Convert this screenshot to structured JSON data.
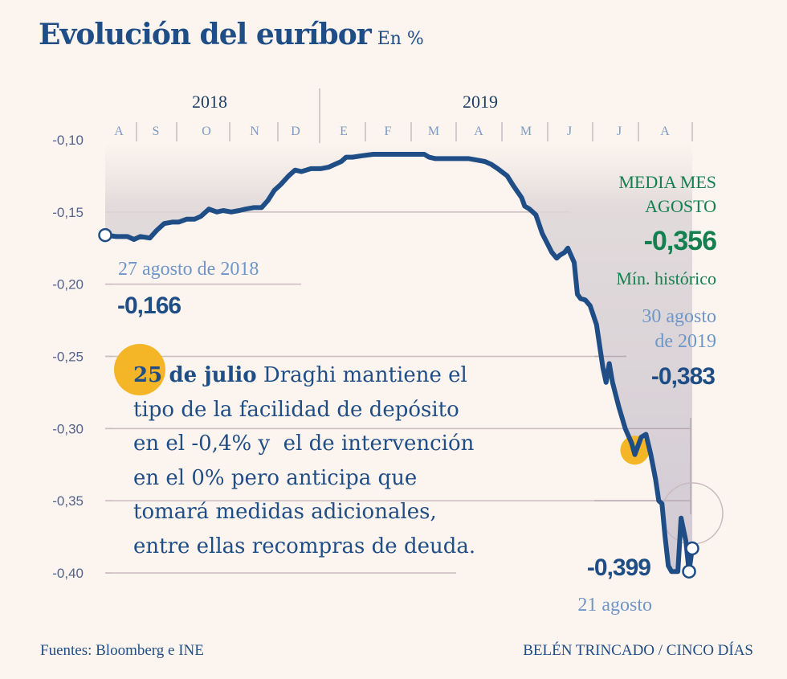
{
  "chart_data": {
    "type": "line",
    "title": "Evolución del euríbor",
    "unit": "En %",
    "xlabel": "",
    "ylabel": "",
    "ylim": [
      -0.4,
      -0.1
    ],
    "y_ticks": [
      -0.1,
      -0.15,
      -0.2,
      -0.25,
      -0.3,
      -0.35,
      -0.4
    ],
    "y_tick_labels": [
      "-0,10",
      "-0,15",
      "-0,20",
      "-0,25",
      "-0,30",
      "-0,35",
      "-0,40"
    ],
    "x_range": [
      "2018-08-27",
      "2019-08-30"
    ],
    "years": [
      {
        "label": "2018",
        "from": "2018-08-27",
        "to": "2018-12-31"
      },
      {
        "label": "2019",
        "from": "2019-01-01",
        "to": "2019-08-30"
      }
    ],
    "months": [
      "A",
      "S",
      "O",
      "N",
      "D",
      "E",
      "F",
      "M",
      "A",
      "M",
      "J",
      "J",
      "A"
    ],
    "grid": true,
    "series": [
      {
        "name": "Euríbor",
        "color": "#1f4d86",
        "points": [
          [
            "2018-08-27",
            -0.166
          ],
          [
            "2018-09-03",
            -0.167
          ],
          [
            "2018-09-10",
            -0.167
          ],
          [
            "2018-09-14",
            -0.169
          ],
          [
            "2018-09-18",
            -0.167
          ],
          [
            "2018-09-24",
            -0.168
          ],
          [
            "2018-09-28",
            -0.163
          ],
          [
            "2018-10-03",
            -0.158
          ],
          [
            "2018-10-08",
            -0.157
          ],
          [
            "2018-10-12",
            -0.157
          ],
          [
            "2018-10-17",
            -0.155
          ],
          [
            "2018-10-22",
            -0.155
          ],
          [
            "2018-10-26",
            -0.153
          ],
          [
            "2018-10-31",
            -0.148
          ],
          [
            "2018-11-05",
            -0.15
          ],
          [
            "2018-11-09",
            -0.149
          ],
          [
            "2018-11-14",
            -0.15
          ],
          [
            "2018-11-19",
            -0.149
          ],
          [
            "2018-11-23",
            -0.148
          ],
          [
            "2018-11-28",
            -0.147
          ],
          [
            "2018-12-03",
            -0.147
          ],
          [
            "2018-12-07",
            -0.142
          ],
          [
            "2018-12-11",
            -0.135
          ],
          [
            "2018-12-15",
            -0.131
          ],
          [
            "2018-12-20",
            -0.125
          ],
          [
            "2018-12-24",
            -0.121
          ],
          [
            "2018-12-28",
            -0.122
          ],
          [
            "2019-01-03",
            -0.12
          ],
          [
            "2019-01-09",
            -0.12
          ],
          [
            "2019-01-14",
            -0.119
          ],
          [
            "2019-01-18",
            -0.117
          ],
          [
            "2019-01-22",
            -0.115
          ],
          [
            "2019-01-25",
            -0.112
          ],
          [
            "2019-01-29",
            -0.112
          ],
          [
            "2019-02-04",
            -0.111
          ],
          [
            "2019-02-11",
            -0.11
          ],
          [
            "2019-02-20",
            -0.11
          ],
          [
            "2019-02-28",
            -0.11
          ],
          [
            "2019-03-08",
            -0.11
          ],
          [
            "2019-03-15",
            -0.11
          ],
          [
            "2019-03-18",
            -0.112
          ],
          [
            "2019-03-22",
            -0.113
          ],
          [
            "2019-03-29",
            -0.113
          ],
          [
            "2019-04-05",
            -0.113
          ],
          [
            "2019-04-12",
            -0.113
          ],
          [
            "2019-04-17",
            -0.114
          ],
          [
            "2019-04-22",
            -0.115
          ],
          [
            "2019-04-26",
            -0.117
          ],
          [
            "2019-04-30",
            -0.12
          ],
          [
            "2019-05-06",
            -0.125
          ],
          [
            "2019-05-10",
            -0.132
          ],
          [
            "2019-05-15",
            -0.14
          ],
          [
            "2019-05-17",
            -0.146
          ],
          [
            "2019-05-20",
            -0.148
          ],
          [
            "2019-05-24",
            -0.152
          ],
          [
            "2019-05-28",
            -0.165
          ],
          [
            "2019-06-03",
            -0.178
          ],
          [
            "2019-06-06",
            -0.182
          ],
          [
            "2019-06-08",
            -0.18
          ],
          [
            "2019-06-11",
            -0.178
          ],
          [
            "2019-06-13",
            -0.175
          ],
          [
            "2019-06-17",
            -0.185
          ],
          [
            "2019-06-19",
            -0.207
          ],
          [
            "2019-06-21",
            -0.21
          ],
          [
            "2019-06-24",
            -0.211
          ],
          [
            "2019-06-27",
            -0.215
          ],
          [
            "2019-07-01",
            -0.228
          ],
          [
            "2019-07-05",
            -0.258
          ],
          [
            "2019-07-07",
            -0.268
          ],
          [
            "2019-07-09",
            -0.255
          ],
          [
            "2019-07-11",
            -0.268
          ],
          [
            "2019-07-15",
            -0.285
          ],
          [
            "2019-07-19",
            -0.3
          ],
          [
            "2019-07-23",
            -0.31
          ],
          [
            "2019-07-25",
            -0.318
          ],
          [
            "2019-07-29",
            -0.306
          ],
          [
            "2019-08-01",
            -0.304
          ],
          [
            "2019-08-04",
            -0.318
          ],
          [
            "2019-08-07",
            -0.335
          ],
          [
            "2019-08-09",
            -0.35
          ],
          [
            "2019-08-11",
            -0.352
          ],
          [
            "2019-08-13",
            -0.375
          ],
          [
            "2019-08-15",
            -0.395
          ],
          [
            "2019-08-17",
            -0.399
          ],
          [
            "2019-08-21",
            -0.399
          ],
          [
            "2019-08-23",
            -0.362
          ],
          [
            "2019-08-26",
            -0.378
          ],
          [
            "2019-08-28",
            -0.399
          ],
          [
            "2019-08-30",
            -0.383
          ]
        ]
      }
    ],
    "annotations": [
      {
        "date": "2018-08-27",
        "label": "27 agosto de 2018",
        "value_label": "-0,166"
      },
      {
        "date": "2019-08-30",
        "label_lines": [
          "30 agosto",
          "de 2019"
        ],
        "value_label": "-0,383"
      },
      {
        "date": "2019-08-28",
        "label": "21 agosto",
        "value_label": "-0,399"
      },
      {
        "date": "2019-07-25",
        "marker": "event",
        "color": "#f4b626"
      }
    ],
    "media_mes": {
      "label_lines": [
        "MEDIA MES",
        "AGOSTO"
      ],
      "value": "-0,356",
      "note": "Mín. histórico",
      "color": "#14804f"
    }
  },
  "header": {
    "title": "Evolución del euríbor",
    "unit": "En %"
  },
  "event_note": {
    "badge_day": "25",
    "bold": "de julio",
    "text_lines": [
      " Draghi mantiene el",
      "tipo de la facilidad de depósito",
      "en el -0,4% y  el de intervención",
      "en el 0% pero anticipa que",
      "tomará medidas adicionales,",
      "entre ellas recompras de deuda."
    ]
  },
  "footer": {
    "sources": "Fuentes: Bloomberg e INE",
    "credit": "BELÉN TRINCADO / CINCO DÍAS"
  },
  "colors": {
    "background": "#fcf4ee",
    "line": "#1f4d86",
    "accent_yellow": "#f4b626",
    "green": "#14804f",
    "light_blue": "#6f96c8"
  }
}
